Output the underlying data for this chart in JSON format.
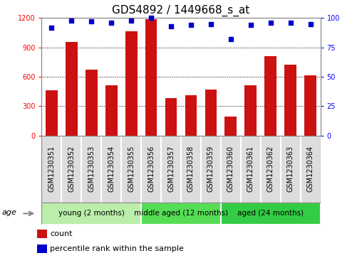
{
  "title": "GDS4892 / 1449668_s_at",
  "samples": [
    "GSM1230351",
    "GSM1230352",
    "GSM1230353",
    "GSM1230354",
    "GSM1230355",
    "GSM1230356",
    "GSM1230357",
    "GSM1230358",
    "GSM1230359",
    "GSM1230360",
    "GSM1230361",
    "GSM1230362",
    "GSM1230363",
    "GSM1230364"
  ],
  "counts": [
    460,
    955,
    670,
    510,
    1065,
    1185,
    380,
    410,
    470,
    195,
    510,
    810,
    720,
    615
  ],
  "percentile_ranks": [
    92,
    98,
    97,
    96,
    98,
    100,
    93,
    94,
    95,
    82,
    94,
    96,
    96,
    95
  ],
  "groups": [
    {
      "label": "young (2 months)",
      "start": 0,
      "end": 5,
      "color": "#BBEEAA"
    },
    {
      "label": "middle aged (12 months)",
      "start": 5,
      "end": 9,
      "color": "#55DD55"
    },
    {
      "label": "aged (24 months)",
      "start": 9,
      "end": 14,
      "color": "#33CC44"
    }
  ],
  "bar_color": "#CC1111",
  "dot_color": "#0000CC",
  "ylim_left": [
    0,
    1200
  ],
  "ylim_right": [
    0,
    100
  ],
  "yticks_left": [
    0,
    300,
    600,
    900,
    1200
  ],
  "yticks_right": [
    0,
    25,
    50,
    75,
    100
  ],
  "bar_width": 0.6,
  "title_fontsize": 11,
  "tick_fontsize": 7,
  "sample_fontsize": 7,
  "legend_fontsize": 8,
  "age_label": "age",
  "legend_count": "count",
  "legend_percentile": "percentile rank within the sample",
  "tick_bg_color": "#DDDDDD",
  "plot_bg_color": "#FFFFFF"
}
